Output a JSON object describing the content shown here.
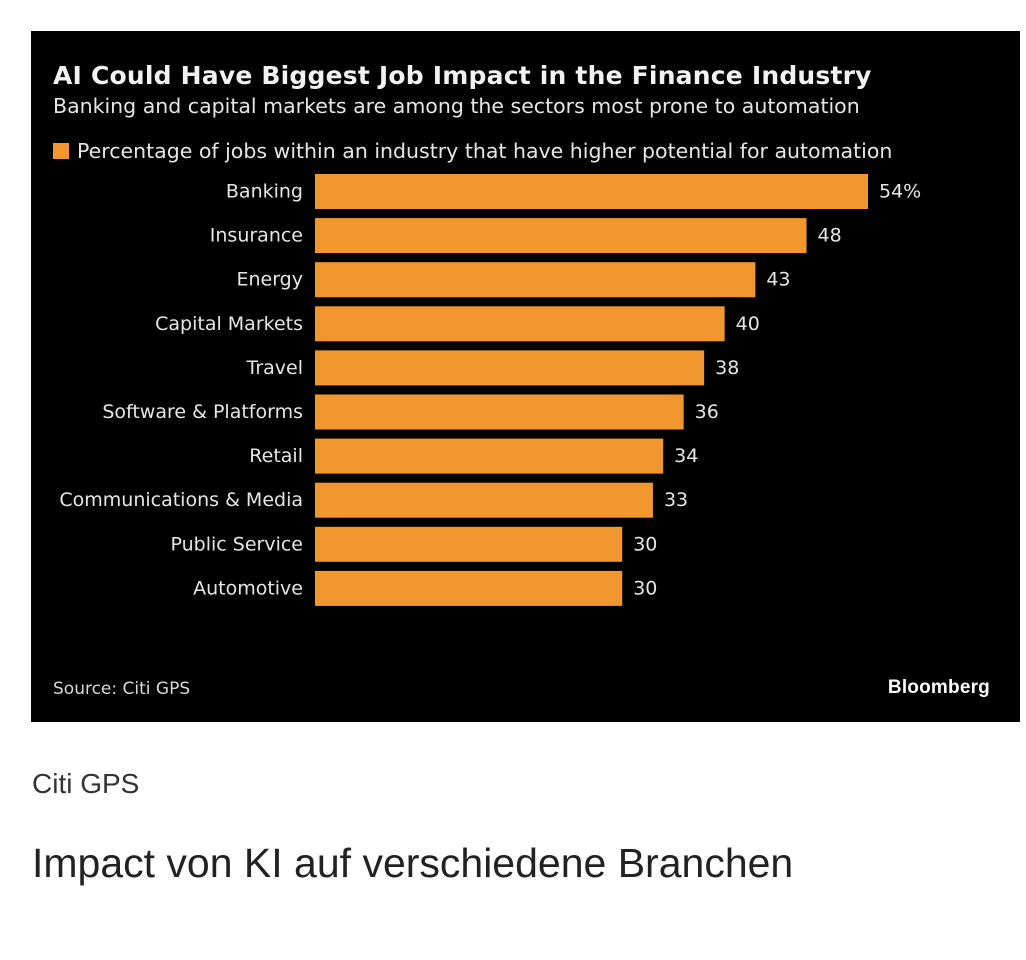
{
  "chart_data": {
    "type": "bar",
    "orientation": "horizontal",
    "title": "AI Could Have Biggest Job Impact in the Finance Industry",
    "subtitle": "Banking and capital markets are among the sectors most prone to automation",
    "categories": [
      "Banking",
      "Insurance",
      "Energy",
      "Capital Markets",
      "Travel",
      "Software & Platforms",
      "Retail",
      "Communications & Media",
      "Public Service",
      "Automotive"
    ],
    "series": [
      {
        "name": "Percentage of jobs within an industry that have higher potential for automation",
        "values": [
          54,
          48,
          43,
          40,
          38,
          36,
          34,
          33,
          30,
          30
        ],
        "color": "#f2962e"
      }
    ],
    "value_labels": [
      "54%",
      "48",
      "43",
      "40",
      "38",
      "36",
      "34",
      "33",
      "30",
      "30"
    ],
    "xlim": [
      0,
      54
    ],
    "grid": false,
    "legend_position": "top-left",
    "source": "Source: Citi GPS",
    "brand": "Bloomberg",
    "background": "#000000"
  },
  "caption": {
    "source": "Citi GPS",
    "title": "Impact von KI auf verschiedene Branchen"
  }
}
